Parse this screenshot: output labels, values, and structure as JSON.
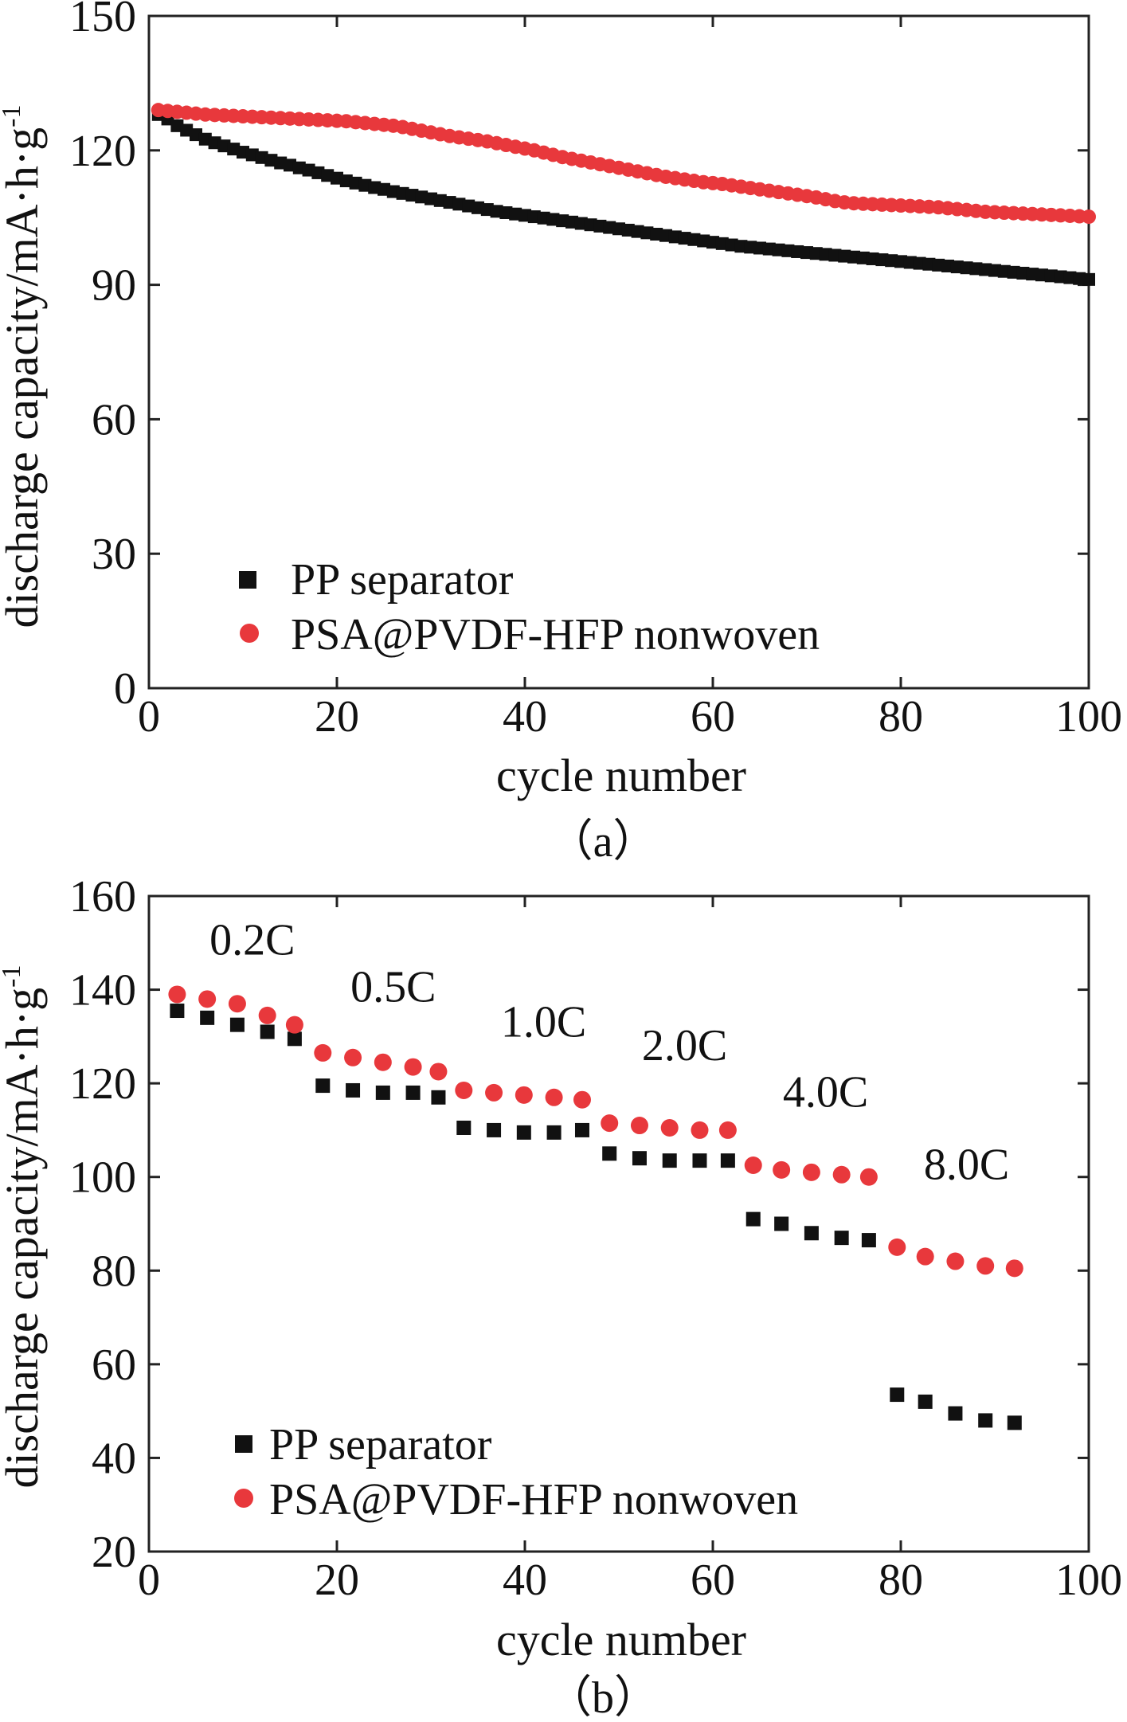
{
  "colors": {
    "pp": "#111111",
    "psa": "#e8383c"
  },
  "chart_data": [
    {
      "type": "scatter",
      "caption": "（a）",
      "title": "",
      "xlabel": "cycle number",
      "ylabel": "discharge capacity/mA·h·g",
      "ylabel_sup": "-1",
      "xlim": [
        0,
        100
      ],
      "ylim": [
        0,
        150
      ],
      "xticks": [
        0,
        20,
        40,
        60,
        80,
        100
      ],
      "yticks": [
        0,
        30,
        60,
        90,
        120,
        150
      ],
      "legend": {
        "position": "bottom-left",
        "entries": [
          "PP separator",
          "PSA@PVDF-HFP nonwoven"
        ]
      },
      "series": [
        {
          "name": "PP separator",
          "marker": "square",
          "color": "#111111",
          "x": [
            1,
            2,
            3,
            4,
            5,
            6,
            7,
            8,
            9,
            10,
            11,
            12,
            13,
            14,
            15,
            16,
            17,
            18,
            19,
            20,
            21,
            22,
            23,
            24,
            25,
            26,
            27,
            28,
            29,
            30,
            31,
            32,
            33,
            34,
            35,
            36,
            37,
            38,
            39,
            40,
            41,
            42,
            43,
            44,
            45,
            46,
            47,
            48,
            49,
            50,
            51,
            52,
            53,
            54,
            55,
            56,
            57,
            58,
            59,
            60,
            61,
            62,
            63,
            64,
            65,
            66,
            67,
            68,
            69,
            70,
            71,
            72,
            73,
            74,
            75,
            76,
            77,
            78,
            79,
            80,
            81,
            82,
            83,
            84,
            85,
            86,
            87,
            88,
            89,
            90,
            91,
            92,
            93,
            94,
            95,
            96,
            97,
            98,
            99,
            100
          ],
          "values": [
            128,
            127,
            125.5,
            124.5,
            123.5,
            122.5,
            121.7,
            121,
            120.3,
            119.6,
            119,
            118.4,
            117.8,
            117.2,
            116.7,
            116.1,
            115.6,
            115,
            114.4,
            113.8,
            113.2,
            112.7,
            112.2,
            111.7,
            111.3,
            110.8,
            110.4,
            110,
            109.6,
            109.2,
            108.8,
            108.4,
            108,
            107.6,
            107.2,
            106.8,
            106.4,
            106.1,
            105.8,
            105.5,
            105.2,
            104.9,
            104.6,
            104.3,
            104,
            103.7,
            103.4,
            103.1,
            102.8,
            102.5,
            102.2,
            101.9,
            101.6,
            101.3,
            101,
            100.7,
            100.4,
            100.1,
            99.8,
            99.5,
            99.2,
            98.9,
            98.6,
            98.4,
            98.2,
            98,
            97.8,
            97.6,
            97.4,
            97.2,
            97,
            96.8,
            96.6,
            96.4,
            96.2,
            96,
            95.8,
            95.6,
            95.4,
            95.2,
            95,
            94.8,
            94.6,
            94.4,
            94.2,
            94,
            93.8,
            93.6,
            93.4,
            93.2,
            93,
            92.8,
            92.6,
            92.4,
            92.2,
            92,
            91.8,
            91.6,
            91.4,
            91.2
          ]
        },
        {
          "name": "PSA@PVDF-HFP nonwoven",
          "marker": "circle",
          "color": "#e8383c",
          "x": [
            1,
            2,
            3,
            4,
            5,
            6,
            7,
            8,
            9,
            10,
            11,
            12,
            13,
            14,
            15,
            16,
            17,
            18,
            19,
            20,
            21,
            22,
            23,
            24,
            25,
            26,
            27,
            28,
            29,
            30,
            31,
            32,
            33,
            34,
            35,
            36,
            37,
            38,
            39,
            40,
            41,
            42,
            43,
            44,
            45,
            46,
            47,
            48,
            49,
            50,
            51,
            52,
            53,
            54,
            55,
            56,
            57,
            58,
            59,
            60,
            61,
            62,
            63,
            64,
            65,
            66,
            67,
            68,
            69,
            70,
            71,
            72,
            73,
            74,
            75,
            76,
            77,
            78,
            79,
            80,
            81,
            82,
            83,
            84,
            85,
            86,
            87,
            88,
            89,
            90,
            91,
            92,
            93,
            94,
            95,
            96,
            97,
            98,
            99,
            100
          ],
          "values": [
            129,
            128.8,
            128.6,
            128.4,
            128.2,
            128,
            127.9,
            127.8,
            127.7,
            127.6,
            127.5,
            127.4,
            127.3,
            127.2,
            127.1,
            127,
            126.9,
            126.8,
            126.7,
            126.6,
            126.5,
            126.3,
            126.1,
            125.9,
            125.7,
            125.5,
            125.2,
            124.8,
            124.4,
            124,
            123.6,
            123.2,
            122.9,
            122.6,
            122.3,
            122,
            121.6,
            121.2,
            120.8,
            120.4,
            120,
            119.5,
            119,
            118.5,
            118.1,
            117.7,
            117.3,
            116.9,
            116.5,
            116.1,
            115.7,
            115.3,
            114.9,
            114.5,
            114.1,
            113.8,
            113.5,
            113.2,
            112.9,
            112.7,
            112.5,
            112.2,
            111.9,
            111.6,
            111.3,
            111,
            110.7,
            110.4,
            110.1,
            109.8,
            109.5,
            109.1,
            108.7,
            108.4,
            108.2,
            108.1,
            108,
            107.9,
            107.8,
            107.7,
            107.6,
            107.5,
            107.4,
            107.3,
            107.1,
            106.9,
            106.7,
            106.5,
            106.3,
            106.2,
            106.1,
            106,
            105.9,
            105.8,
            105.7,
            105.6,
            105.5,
            105.4,
            105.3,
            105.2
          ]
        }
      ]
    },
    {
      "type": "scatter",
      "caption": "（b）",
      "title": "",
      "xlabel": "cycle number",
      "ylabel": "discharge capacity/mA·h·g",
      "ylabel_sup": "-1",
      "xlim": [
        0,
        100
      ],
      "ylim": [
        20,
        160
      ],
      "xticks": [
        0,
        20,
        40,
        60,
        80,
        100
      ],
      "yticks": [
        20,
        40,
        60,
        80,
        100,
        120,
        140,
        160
      ],
      "legend": {
        "position": "bottom-left",
        "entries": [
          "PP separator",
          "PSA@PVDF-HFP nonwoven"
        ]
      },
      "annotations": [
        {
          "text": "0.2C",
          "x": 11,
          "y": 147.5
        },
        {
          "text": "0.5C",
          "x": 26,
          "y": 137.5
        },
        {
          "text": "1.0C",
          "x": 42,
          "y": 130
        },
        {
          "text": "2.0C",
          "x": 57,
          "y": 125
        },
        {
          "text": "4.0C",
          "x": 72,
          "y": 115
        },
        {
          "text": "8.0C",
          "x": 87,
          "y": 99.5
        }
      ],
      "series": [
        {
          "name": "PP separator",
          "marker": "square",
          "color": "#111111",
          "x": [
            3,
            6.2,
            9.4,
            12.6,
            15.5,
            18.5,
            21.7,
            24.9,
            28.1,
            30.8,
            33.5,
            36.7,
            39.9,
            43.1,
            46.1,
            49,
            52.2,
            55.4,
            58.6,
            61.6,
            64.3,
            67.3,
            70.5,
            73.7,
            76.6,
            79.6,
            82.6,
            85.8,
            89,
            92.1
          ],
          "values": [
            135.5,
            134,
            132.5,
            131,
            129.5,
            119.5,
            118.5,
            118,
            118,
            117,
            110.5,
            110,
            109.5,
            109.5,
            110,
            105,
            104,
            103.5,
            103.5,
            103.5,
            91,
            90,
            88,
            87,
            86.5,
            53.5,
            52,
            49.5,
            48,
            47.5
          ]
        },
        {
          "name": "PSA@PVDF-HFP nonwoven",
          "marker": "circle",
          "color": "#e8383c",
          "x": [
            3,
            6.2,
            9.4,
            12.6,
            15.5,
            18.5,
            21.7,
            24.9,
            28.1,
            30.8,
            33.5,
            36.7,
            39.9,
            43.1,
            46.1,
            49,
            52.2,
            55.4,
            58.6,
            61.6,
            64.3,
            67.3,
            70.5,
            73.7,
            76.6,
            79.6,
            82.6,
            85.8,
            89,
            92.1
          ],
          "values": [
            139,
            138,
            137,
            134.5,
            132.5,
            126.5,
            125.5,
            124.5,
            123.5,
            122.5,
            118.5,
            118,
            117.5,
            117,
            116.5,
            111.5,
            111,
            110.5,
            110,
            110,
            102.5,
            101.5,
            101,
            100.5,
            100,
            85,
            83,
            82,
            81,
            80.5
          ]
        }
      ]
    }
  ]
}
